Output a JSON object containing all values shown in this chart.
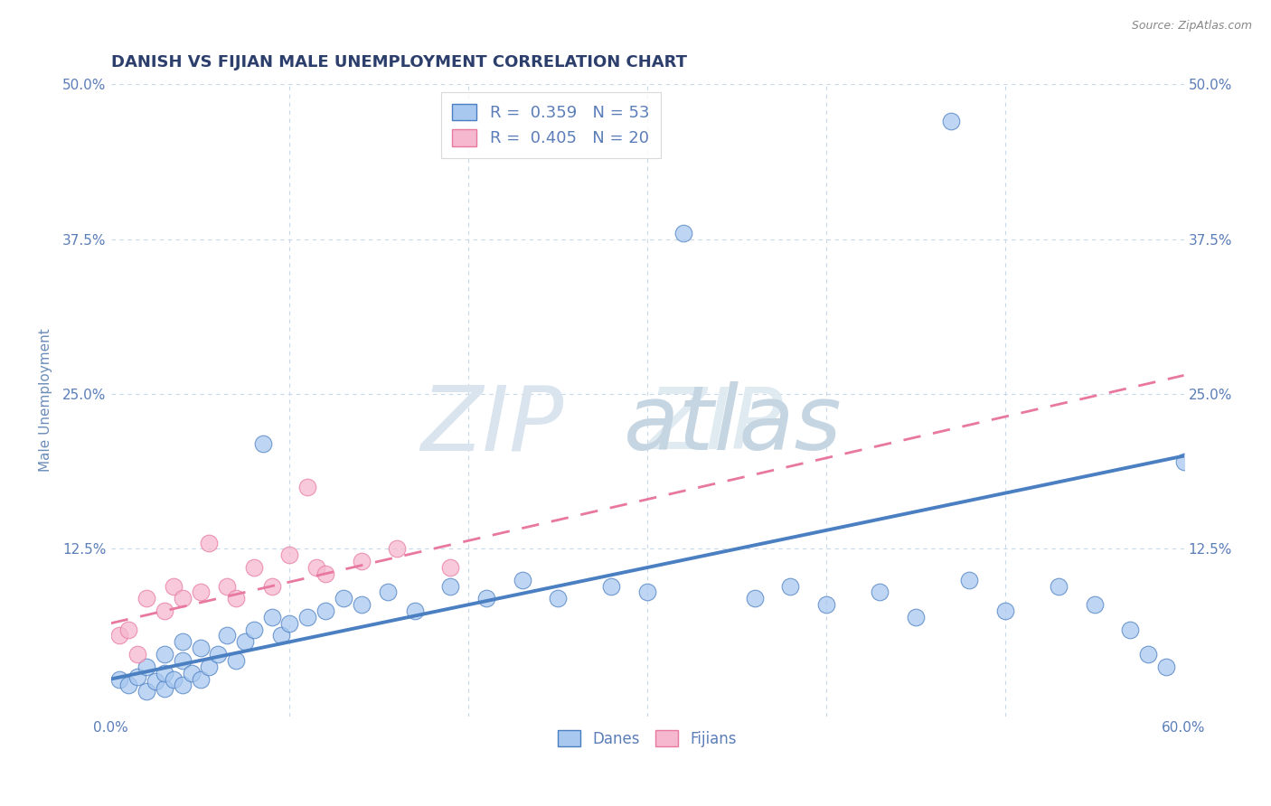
{
  "title": "DANISH VS FIJIAN MALE UNEMPLOYMENT CORRELATION CHART",
  "source": "Source: ZipAtlas.com",
  "ylabel": "Male Unemployment",
  "xlim": [
    0,
    0.6
  ],
  "ylim": [
    -0.01,
    0.5
  ],
  "xticks": [
    0.0,
    0.1,
    0.2,
    0.3,
    0.4,
    0.5,
    0.6
  ],
  "yticks": [
    0.0,
    0.125,
    0.25,
    0.375,
    0.5
  ],
  "ytick_labels": [
    "",
    "12.5%",
    "25.0%",
    "37.5%",
    "50.0%"
  ],
  "danes_color": "#a8c8f0",
  "fijians_color": "#f5b8ce",
  "danes_line_color": "#4a7fc1",
  "fijians_line_color": "#e8789f",
  "background_color": "#ffffff",
  "title_color": "#2c3e6b",
  "axis_label_color": "#6b8cba",
  "tick_label_color": "#5b7db8",
  "grid_color": "#c8d8e8",
  "danes_x": [
    0.005,
    0.01,
    0.015,
    0.02,
    0.02,
    0.025,
    0.03,
    0.03,
    0.03,
    0.035,
    0.04,
    0.04,
    0.04,
    0.045,
    0.05,
    0.05,
    0.055,
    0.06,
    0.065,
    0.07,
    0.075,
    0.08,
    0.085,
    0.09,
    0.095,
    0.1,
    0.11,
    0.12,
    0.13,
    0.14,
    0.155,
    0.17,
    0.19,
    0.21,
    0.23,
    0.25,
    0.28,
    0.3,
    0.32,
    0.36,
    0.38,
    0.4,
    0.43,
    0.45,
    0.47,
    0.48,
    0.5,
    0.53,
    0.55,
    0.57,
    0.58,
    0.59,
    0.6
  ],
  "danes_y": [
    0.02,
    0.015,
    0.022,
    0.01,
    0.03,
    0.018,
    0.012,
    0.025,
    0.04,
    0.02,
    0.015,
    0.035,
    0.05,
    0.025,
    0.02,
    0.045,
    0.03,
    0.04,
    0.055,
    0.035,
    0.05,
    0.06,
    0.21,
    0.07,
    0.055,
    0.065,
    0.07,
    0.075,
    0.085,
    0.08,
    0.09,
    0.075,
    0.095,
    0.085,
    0.1,
    0.085,
    0.095,
    0.09,
    0.38,
    0.085,
    0.095,
    0.08,
    0.09,
    0.07,
    0.47,
    0.1,
    0.075,
    0.095,
    0.08,
    0.06,
    0.04,
    0.03,
    0.195
  ],
  "fijians_x": [
    0.005,
    0.01,
    0.015,
    0.02,
    0.03,
    0.035,
    0.04,
    0.05,
    0.055,
    0.065,
    0.07,
    0.08,
    0.09,
    0.1,
    0.11,
    0.115,
    0.12,
    0.14,
    0.16,
    0.19
  ],
  "fijians_y": [
    0.055,
    0.06,
    0.04,
    0.085,
    0.075,
    0.095,
    0.085,
    0.09,
    0.13,
    0.095,
    0.085,
    0.11,
    0.095,
    0.12,
    0.175,
    0.11,
    0.105,
    0.115,
    0.125,
    0.11
  ],
  "danes_trend": [
    0.02,
    0.2
  ],
  "fijians_trend": [
    0.04,
    0.21
  ],
  "watermark_zip_color": "#d0dce8",
  "watermark_atlas_color": "#c0ccd8"
}
